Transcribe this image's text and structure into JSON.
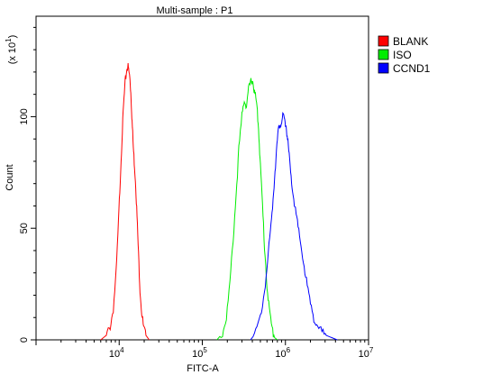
{
  "chart_data": {
    "type": "line",
    "title": "Multi-sample : P1",
    "xlabel": "FITC-A",
    "ylabel": "Count",
    "y_multiplier_label": {
      "base": "(x 10",
      "exp": "1",
      "close": ")"
    },
    "x_scale": "log",
    "xlim": [
      1000,
      10000000
    ],
    "ylim": [
      0,
      145
    ],
    "x_ticks": [
      {
        "value": 10000,
        "base": "10",
        "exp": "4"
      },
      {
        "value": 100000,
        "base": "10",
        "exp": "5"
      },
      {
        "value": 1000000,
        "base": "10",
        "exp": "6"
      },
      {
        "value": 10000000,
        "base": "10",
        "exp": "7"
      }
    ],
    "y_ticks": [
      {
        "value": 0,
        "label": "0"
      },
      {
        "value": 50,
        "label": "50"
      },
      {
        "value": 100,
        "label": "100"
      }
    ],
    "legend_position": "top-right",
    "series": [
      {
        "name": "BLANK",
        "color": "#ff0000",
        "points": [
          [
            6000,
            0
          ],
          [
            7000,
            2
          ],
          [
            7800,
            6
          ],
          [
            8500,
            14
          ],
          [
            9200,
            30
          ],
          [
            9800,
            52
          ],
          [
            10300,
            72
          ],
          [
            10800,
            90
          ],
          [
            11300,
            105
          ],
          [
            11800,
            115
          ],
          [
            12300,
            121
          ],
          [
            12700,
            123
          ],
          [
            13100,
            120
          ],
          [
            13500,
            117
          ],
          [
            13900,
            109
          ],
          [
            14300,
            98
          ],
          [
            14800,
            86
          ],
          [
            15300,
            78
          ],
          [
            15800,
            70
          ],
          [
            16400,
            55
          ],
          [
            17100,
            38
          ],
          [
            17800,
            23
          ],
          [
            18700,
            12
          ],
          [
            19700,
            5
          ],
          [
            21000,
            2
          ],
          [
            23000,
            0
          ]
        ]
      },
      {
        "name": "ISO",
        "color": "#00ee00",
        "points": [
          [
            150000,
            0
          ],
          [
            175000,
            3
          ],
          [
            195000,
            10
          ],
          [
            215000,
            25
          ],
          [
            235000,
            45
          ],
          [
            255000,
            65
          ],
          [
            275000,
            85
          ],
          [
            300000,
            100
          ],
          [
            320000,
            108
          ],
          [
            340000,
            105
          ],
          [
            360000,
            112
          ],
          [
            380000,
            115
          ],
          [
            400000,
            117
          ],
          [
            420000,
            112
          ],
          [
            440000,
            108
          ],
          [
            460000,
            102
          ],
          [
            480000,
            92
          ],
          [
            500000,
            78
          ],
          [
            530000,
            60
          ],
          [
            560000,
            42
          ],
          [
            600000,
            25
          ],
          [
            640000,
            13
          ],
          [
            690000,
            5
          ],
          [
            740000,
            1
          ],
          [
            800000,
            0
          ]
        ]
      },
      {
        "name": "CCND1",
        "color": "#0000ff",
        "points": [
          [
            380000,
            0
          ],
          [
            440000,
            3
          ],
          [
            500000,
            10
          ],
          [
            560000,
            22
          ],
          [
            610000,
            35
          ],
          [
            660000,
            48
          ],
          [
            700000,
            60
          ],
          [
            740000,
            73
          ],
          [
            780000,
            85
          ],
          [
            820000,
            93
          ],
          [
            860000,
            97
          ],
          [
            900000,
            98
          ],
          [
            940000,
            100
          ],
          [
            980000,
            98
          ],
          [
            1020000,
            96
          ],
          [
            1060000,
            90
          ],
          [
            1110000,
            82
          ],
          [
            1170000,
            72
          ],
          [
            1240000,
            65
          ],
          [
            1320000,
            58
          ],
          [
            1420000,
            50
          ],
          [
            1540000,
            42
          ],
          [
            1680000,
            33
          ],
          [
            1830000,
            24
          ],
          [
            2000000,
            16
          ],
          [
            2200000,
            10
          ],
          [
            2450000,
            6
          ],
          [
            2750000,
            3
          ],
          [
            3100000,
            2
          ],
          [
            3600000,
            1
          ],
          [
            4200000,
            0
          ]
        ]
      }
    ]
  }
}
